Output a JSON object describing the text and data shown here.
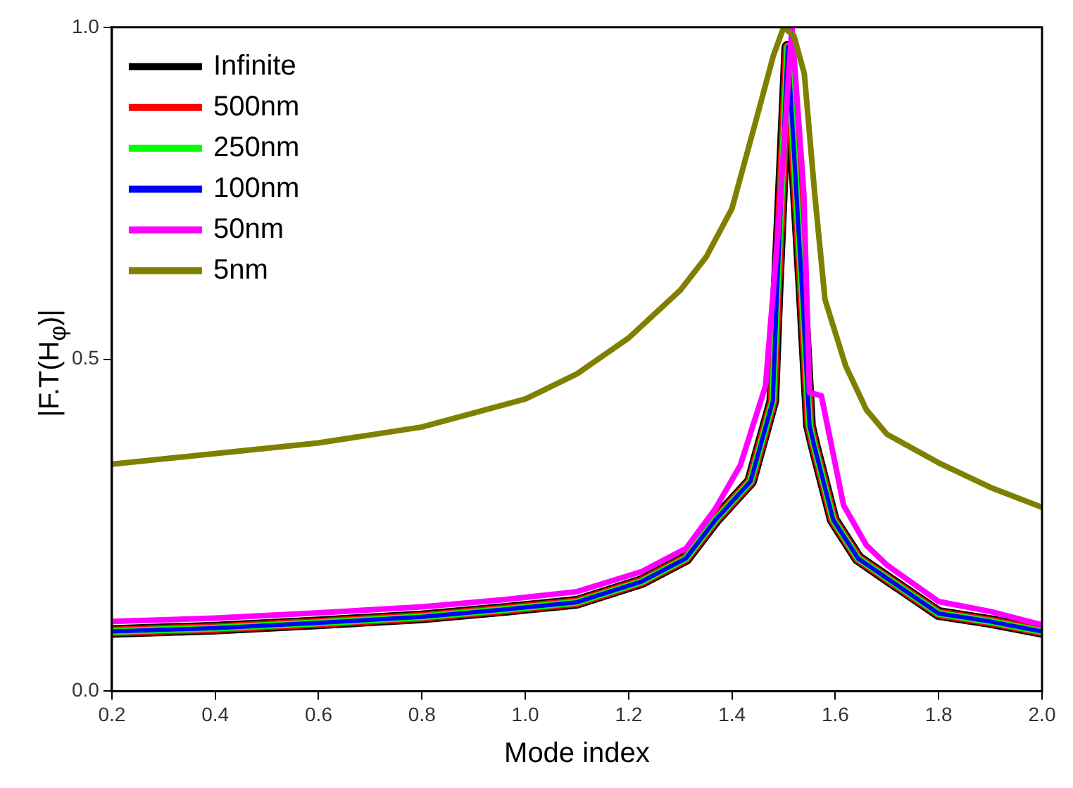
{
  "chart_data": {
    "type": "line",
    "xlabel": "Mode index",
    "ylabel": "|F.T(H$_{φ}$)|",
    "xlim": [
      0.2,
      2.0
    ],
    "ylim": [
      0,
      1.0
    ],
    "xticks": [
      {
        "value": 0.2,
        "label": "0.2"
      },
      {
        "value": 0.4,
        "label": "0.4"
      },
      {
        "value": 0.6,
        "label": "0.6"
      },
      {
        "value": 0.8,
        "label": "0.8"
      },
      {
        "value": 1.0,
        "label": "1.0"
      },
      {
        "value": 1.2,
        "label": "1.2"
      },
      {
        "value": 1.4,
        "label": "1.4"
      },
      {
        "value": 1.6,
        "label": "1.6"
      },
      {
        "value": 1.8,
        "label": "1.8"
      },
      {
        "value": 2.0,
        "label": "2.0"
      }
    ],
    "yticks": [
      {
        "value": 0,
        "label": "0.0"
      },
      {
        "value": 0.5,
        "label": "0.5"
      },
      {
        "value": 1.0,
        "label": "1.0"
      }
    ],
    "grid": false,
    "legend": "top left",
    "marker": "none",
    "line_style": "solid",
    "series": [
      {
        "name": "Infinite",
        "color": "#000000",
        "x": [
          0.2,
          0.4,
          0.6,
          0.8,
          0.96,
          1.1,
          1.225,
          1.311,
          1.368,
          1.436,
          1.479,
          1.487,
          1.508,
          1.536,
          1.55,
          1.559,
          1.596,
          1.644,
          1.7,
          1.8,
          1.9,
          2.0
        ],
        "values": [
          0.09,
          0.095,
          0.103,
          0.112,
          0.123,
          0.134,
          0.165,
          0.2,
          0.258,
          0.316,
          0.437,
          0.6,
          0.97,
          0.6,
          0.4,
          0.37,
          0.258,
          0.2,
          0.17,
          0.117,
          0.105,
          0.09
        ]
      },
      {
        "name": "500nm",
        "color": "#ff0000",
        "x": [
          0.2,
          0.4,
          0.6,
          0.8,
          0.96,
          1.1,
          1.225,
          1.311,
          1.368,
          1.436,
          1.479,
          1.487,
          1.508,
          1.536,
          1.55,
          1.559,
          1.596,
          1.644,
          1.7,
          1.8,
          1.9,
          2.0
        ],
        "values": [
          0.09,
          0.095,
          0.103,
          0.112,
          0.123,
          0.134,
          0.165,
          0.2,
          0.258,
          0.316,
          0.437,
          0.6,
          0.97,
          0.6,
          0.4,
          0.37,
          0.258,
          0.2,
          0.17,
          0.117,
          0.105,
          0.09
        ]
      },
      {
        "name": "250nm",
        "color": "#00ff00",
        "x": [
          0.2,
          0.4,
          0.6,
          0.8,
          0.96,
          1.1,
          1.225,
          1.311,
          1.368,
          1.436,
          1.479,
          1.487,
          1.508,
          1.536,
          1.55,
          1.559,
          1.596,
          1.644,
          1.7,
          1.8,
          1.9,
          2.0
        ],
        "values": [
          0.09,
          0.095,
          0.103,
          0.112,
          0.123,
          0.134,
          0.165,
          0.2,
          0.258,
          0.316,
          0.437,
          0.6,
          0.97,
          0.6,
          0.4,
          0.37,
          0.258,
          0.2,
          0.17,
          0.117,
          0.105,
          0.09
        ]
      },
      {
        "name": "100nm",
        "color": "#0000ff",
        "x": [
          0.2,
          0.4,
          0.6,
          0.8,
          0.96,
          1.1,
          1.225,
          1.311,
          1.368,
          1.436,
          1.479,
          1.487,
          1.508,
          1.536,
          1.55,
          1.559,
          1.596,
          1.644,
          1.7,
          1.8,
          1.9,
          2.0
        ],
        "values": [
          0.09,
          0.095,
          0.103,
          0.112,
          0.123,
          0.134,
          0.165,
          0.2,
          0.258,
          0.316,
          0.437,
          0.6,
          0.97,
          0.6,
          0.4,
          0.37,
          0.258,
          0.2,
          0.17,
          0.117,
          0.105,
          0.09
        ]
      },
      {
        "name": "50nm",
        "color": "#ff00ff",
        "x": [
          0.2,
          0.4,
          0.6,
          0.8,
          0.96,
          1.1,
          1.225,
          1.311,
          1.368,
          1.416,
          1.465,
          1.49,
          1.516,
          1.539,
          1.55,
          1.573,
          1.616,
          1.66,
          1.7,
          1.8,
          1.9,
          2.0
        ],
        "values": [
          0.105,
          0.11,
          0.118,
          0.127,
          0.138,
          0.15,
          0.18,
          0.215,
          0.275,
          0.34,
          0.46,
          0.7,
          1.0,
          0.75,
          0.45,
          0.445,
          0.28,
          0.22,
          0.19,
          0.135,
          0.12,
          0.1
        ]
      },
      {
        "name": "5nm",
        "color": "#808000",
        "x": [
          0.2,
          0.6,
          0.8,
          1.0,
          1.1,
          1.2,
          1.3,
          1.35,
          1.4,
          1.45,
          1.48,
          1.5,
          1.52,
          1.54,
          1.56,
          1.58,
          1.62,
          1.66,
          1.7,
          1.8,
          1.9,
          2.0
        ],
        "values": [
          0.342,
          0.374,
          0.398,
          0.44,
          0.478,
          0.532,
          0.604,
          0.654,
          0.727,
          0.87,
          0.957,
          1.0,
          0.987,
          0.93,
          0.75,
          0.59,
          0.49,
          0.424,
          0.387,
          0.344,
          0.307,
          0.277
        ]
      }
    ]
  }
}
